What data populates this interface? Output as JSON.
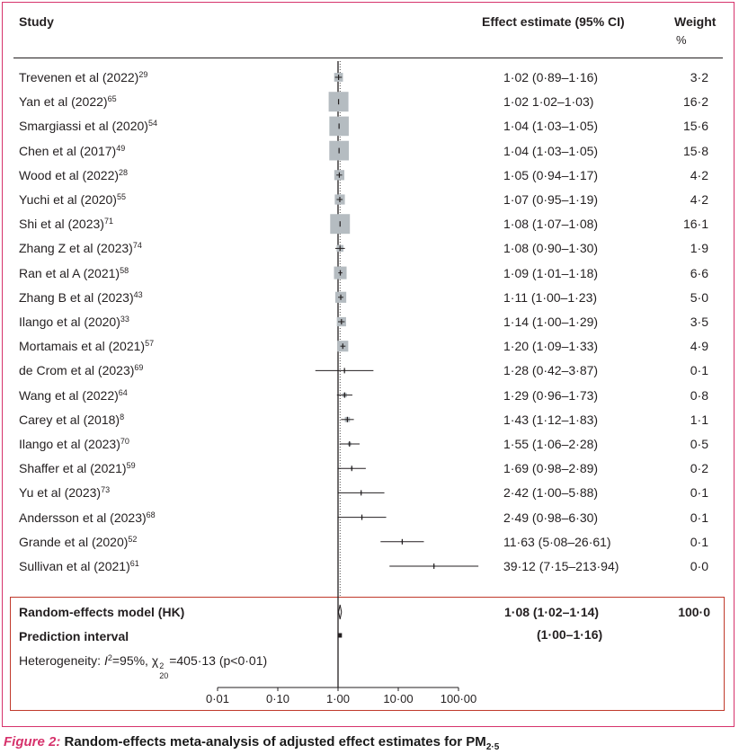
{
  "header": {
    "study": "Study",
    "effect": "Effect estimate (95% CI)",
    "weight_line1": "Weight",
    "weight_line2": "%"
  },
  "chart_data": {
    "type": "forest",
    "x_scale": "log",
    "xlim": [
      0.01,
      100
    ],
    "ticks": [
      "0·01",
      "0·10",
      "1·00",
      "10·00",
      "100·00"
    ],
    "tick_values": [
      0.01,
      0.1,
      1,
      10,
      100
    ],
    "reference_line": 1,
    "studies": [
      {
        "name": "Trevenen et al (2022)",
        "ref": "29",
        "est": 1.02,
        "lo": 0.89,
        "hi": 1.16,
        "ci_text": "1·02 (0·89–1·16)",
        "weight": 3.2,
        "weight_text": "3·2"
      },
      {
        "name": "Yan et al (2022)",
        "ref": "65",
        "est": 1.02,
        "lo": 1.02,
        "hi": 1.03,
        "ci_text": "1·02 1·02–1·03)",
        "weight": 16.2,
        "weight_text": "16·2"
      },
      {
        "name": "Smargiassi et al (2020)",
        "ref": "54",
        "est": 1.04,
        "lo": 1.03,
        "hi": 1.05,
        "ci_text": "1·04 (1·03–1·05)",
        "weight": 15.6,
        "weight_text": "15·6"
      },
      {
        "name": "Chen et al (2017)",
        "ref": "49",
        "est": 1.04,
        "lo": 1.03,
        "hi": 1.05,
        "ci_text": "1·04 (1·03–1·05)",
        "weight": 15.8,
        "weight_text": "15·8"
      },
      {
        "name": "Wood et al (2022)",
        "ref": "28",
        "est": 1.05,
        "lo": 0.94,
        "hi": 1.17,
        "ci_text": "1·05 (0·94–1·17)",
        "weight": 4.2,
        "weight_text": "4·2"
      },
      {
        "name": "Yuchi et al (2020)",
        "ref": "55",
        "est": 1.07,
        "lo": 0.95,
        "hi": 1.19,
        "ci_text": "1·07 (0·95–1·19)",
        "weight": 4.2,
        "weight_text": "4·2"
      },
      {
        "name": "Shi et al (2023)",
        "ref": "71",
        "est": 1.08,
        "lo": 1.07,
        "hi": 1.08,
        "ci_text": "1·08 (1·07–1·08)",
        "weight": 16.1,
        "weight_text": "16·1"
      },
      {
        "name": "Zhang Z et al (2023)",
        "ref": "74",
        "est": 1.08,
        "lo": 0.9,
        "hi": 1.3,
        "ci_text": "1·08 (0·90–1·30)",
        "weight": 1.9,
        "weight_text": "1·9"
      },
      {
        "name": "Ran et al A (2021)",
        "ref": "58",
        "est": 1.09,
        "lo": 1.01,
        "hi": 1.18,
        "ci_text": "1·09 (1·01–1·18)",
        "weight": 6.6,
        "weight_text": "6·6"
      },
      {
        "name": "Zhang B et al (2023)",
        "ref": "43",
        "est": 1.11,
        "lo": 1.0,
        "hi": 1.23,
        "ci_text": "1·11 (1·00–1·23)",
        "weight": 5.0,
        "weight_text": "5·0"
      },
      {
        "name": "Ilango et al (2020)",
        "ref": "33",
        "est": 1.14,
        "lo": 1.0,
        "hi": 1.29,
        "ci_text": "1·14 (1·00–1·29)",
        "weight": 3.5,
        "weight_text": "3·5"
      },
      {
        "name": "Mortamais et al (2021)",
        "ref": "57",
        "est": 1.2,
        "lo": 1.09,
        "hi": 1.33,
        "ci_text": "1·20 (1·09–1·33)",
        "weight": 4.9,
        "weight_text": "4·9"
      },
      {
        "name": "de Crom et al (2023)",
        "ref": "69",
        "est": 1.28,
        "lo": 0.42,
        "hi": 3.87,
        "ci_text": "1·28 (0·42–3·87)",
        "weight": 0.1,
        "weight_text": "0·1"
      },
      {
        "name": "Wang et al (2022)",
        "ref": "64",
        "est": 1.29,
        "lo": 0.96,
        "hi": 1.73,
        "ci_text": "1·29 (0·96–1·73)",
        "weight": 0.8,
        "weight_text": "0·8"
      },
      {
        "name": "Carey et al (2018)",
        "ref": "8",
        "est": 1.43,
        "lo": 1.12,
        "hi": 1.83,
        "ci_text": "1·43 (1·12–1·83)",
        "weight": 1.1,
        "weight_text": "1·1"
      },
      {
        "name": "Ilango et al (2023)",
        "ref": "70",
        "est": 1.55,
        "lo": 1.06,
        "hi": 2.28,
        "ci_text": "1·55 (1·06–2·28)",
        "weight": 0.5,
        "weight_text": "0·5"
      },
      {
        "name": "Shaffer et al (2021)",
        "ref": "59",
        "est": 1.69,
        "lo": 0.98,
        "hi": 2.89,
        "ci_text": "1·69 (0·98–2·89)",
        "weight": 0.2,
        "weight_text": "0·2"
      },
      {
        "name": "Yu et al (2023)",
        "ref": "73",
        "est": 2.42,
        "lo": 1.0,
        "hi": 5.88,
        "ci_text": "2·42 (1·00–5·88)",
        "weight": 0.1,
        "weight_text": "0·1"
      },
      {
        "name": "Andersson et al (2023)",
        "ref": "68",
        "est": 2.49,
        "lo": 0.98,
        "hi": 6.3,
        "ci_text": "2·49 (0·98–6·30)",
        "weight": 0.1,
        "weight_text": "0·1"
      },
      {
        "name": "Grande et al (2020)",
        "ref": "52",
        "est": 11.63,
        "lo": 5.08,
        "hi": 26.61,
        "ci_text": "11·63 (5·08–26·61)",
        "weight": 0.1,
        "weight_text": "0·1"
      },
      {
        "name": "Sullivan et al (2021)",
        "ref": "61",
        "est": 39.12,
        "lo": 7.15,
        "hi": 213.94,
        "ci_text": "39·12 (7·15–213·94)",
        "weight": 0.0,
        "weight_text": "0·0"
      }
    ],
    "pooled": {
      "label": "Random-effects model (HK)",
      "est": 1.08,
      "lo": 1.02,
      "hi": 1.14,
      "ci_text": "1·08 (1·02–1·14)",
      "weight_text": "100·0"
    },
    "prediction": {
      "label": "Prediction interval",
      "lo": 1.0,
      "hi": 1.16,
      "ci_text": "(1·00–1·16)"
    },
    "heterogeneity": {
      "prefix": "Heterogeneity: ",
      "i2_symbol": "I",
      "i2_value": "=95%, ",
      "chi_symbol": "χ",
      "chi_sup": "2",
      "chi_sub": "20",
      "chi_value": "=405·13 (p<0·01)"
    }
  },
  "caption": {
    "figure": "Figure 2:",
    "text": " Random-effects meta-analysis of adjusted effect estimates for PM",
    "sub": "2·5"
  },
  "colors": {
    "square": "#b5bcc1",
    "line": "#231f20",
    "summary_border": "#c0392b",
    "frame_border": "#d6336c",
    "figure_label": "#d6336c"
  }
}
